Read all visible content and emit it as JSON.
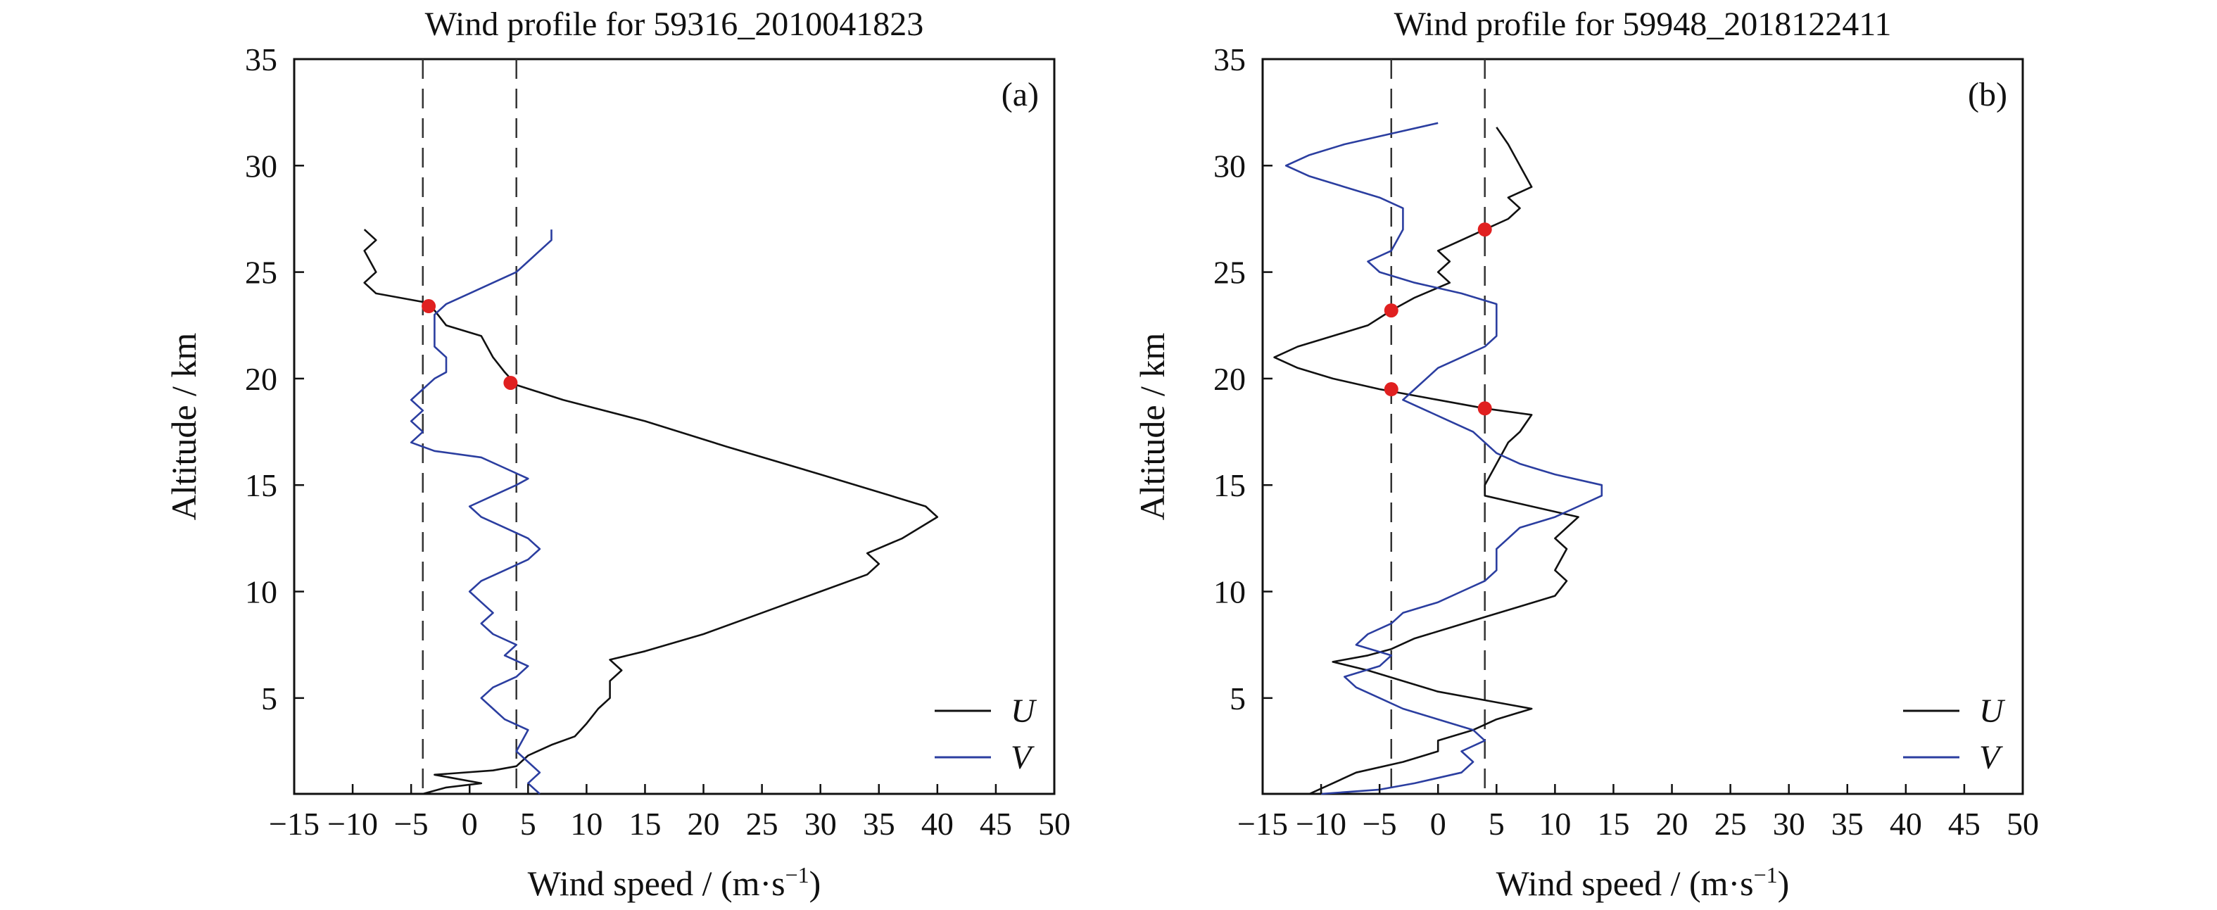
{
  "chart_data": [
    {
      "type": "line",
      "panel": "(a)",
      "title": "Wind profile for 59316_2010041823",
      "xlabel_main": "Wind speed / (m·s",
      "xlabel_sup": "−1",
      "xlabel_close": ")",
      "ylabel": "Altitude / km",
      "xlim": [
        -15,
        50
      ],
      "ylim": [
        0.5,
        35
      ],
      "xticks": [
        -15,
        -10,
        -5,
        0,
        5,
        10,
        15,
        20,
        25,
        30,
        35,
        40,
        45,
        50
      ],
      "xtick_labels": [
        "−15",
        "−10",
        "−5",
        "0",
        "5",
        "10",
        "15",
        "20",
        "25",
        "30",
        "35",
        "40",
        "45",
        "50"
      ],
      "yticks": [
        5,
        10,
        15,
        20,
        25,
        30,
        35
      ],
      "ytick_labels": [
        "5",
        "10",
        "15",
        "20",
        "25",
        "30",
        "35"
      ],
      "reference_lines_x": [
        -4,
        4
      ],
      "legend_position": "bottom-right",
      "series": [
        {
          "name": "U",
          "color": "#111111",
          "points": [
            [
              -4,
              0.5
            ],
            [
              -2,
              0.8
            ],
            [
              1,
              1.0
            ],
            [
              -3,
              1.4
            ],
            [
              2,
              1.6
            ],
            [
              4,
              1.8
            ],
            [
              5,
              2.3
            ],
            [
              7,
              2.8
            ],
            [
              9,
              3.2
            ],
            [
              10,
              3.8
            ],
            [
              11,
              4.5
            ],
            [
              12,
              5.0
            ],
            [
              12,
              5.8
            ],
            [
              13,
              6.3
            ],
            [
              12,
              6.8
            ],
            [
              15,
              7.2
            ],
            [
              20,
              8.0
            ],
            [
              25,
              9.0
            ],
            [
              30,
              10.0
            ],
            [
              34,
              10.8
            ],
            [
              35,
              11.3
            ],
            [
              34,
              11.8
            ],
            [
              37,
              12.5
            ],
            [
              40,
              13.5
            ],
            [
              39,
              14.0
            ],
            [
              36,
              14.5
            ],
            [
              30,
              15.5
            ],
            [
              22,
              16.8
            ],
            [
              15,
              18.0
            ],
            [
              8,
              19.0
            ],
            [
              4,
              19.7
            ],
            [
              3,
              20.3
            ],
            [
              2,
              21.0
            ],
            [
              1,
              22.0
            ],
            [
              -2,
              22.5
            ],
            [
              -3,
              23.2
            ],
            [
              -4,
              23.6
            ],
            [
              -8,
              24.0
            ],
            [
              -9,
              24.5
            ],
            [
              -8,
              25.0
            ],
            [
              -9,
              26.0
            ],
            [
              -8,
              26.5
            ],
            [
              -9,
              27.0
            ]
          ]
        },
        {
          "name": "V",
          "color": "#2b3ea0",
          "points": [
            [
              6,
              0.5
            ],
            [
              5,
              1.0
            ],
            [
              6,
              1.5
            ],
            [
              4,
              2.5
            ],
            [
              5,
              3.5
            ],
            [
              3,
              4.0
            ],
            [
              2,
              4.5
            ],
            [
              1,
              5.0
            ],
            [
              2,
              5.5
            ],
            [
              4,
              6.0
            ],
            [
              5,
              6.5
            ],
            [
              3,
              7.0
            ],
            [
              4,
              7.5
            ],
            [
              2,
              8.0
            ],
            [
              1,
              8.5
            ],
            [
              2,
              9.0
            ],
            [
              1,
              9.5
            ],
            [
              0,
              10.0
            ],
            [
              1,
              10.5
            ],
            [
              3,
              11.0
            ],
            [
              5,
              11.5
            ],
            [
              6,
              12.0
            ],
            [
              5,
              12.5
            ],
            [
              3,
              13.0
            ],
            [
              1,
              13.5
            ],
            [
              0,
              14.0
            ],
            [
              2,
              14.5
            ],
            [
              4,
              15.0
            ],
            [
              5,
              15.3
            ],
            [
              3,
              15.8
            ],
            [
              1,
              16.3
            ],
            [
              -3,
              16.6
            ],
            [
              -5,
              17.0
            ],
            [
              -4,
              17.5
            ],
            [
              -5,
              18.0
            ],
            [
              -4,
              18.5
            ],
            [
              -5,
              19.0
            ],
            [
              -4,
              19.5
            ],
            [
              -3,
              20.0
            ],
            [
              -2,
              20.3
            ],
            [
              -2,
              21.0
            ],
            [
              -3,
              21.5
            ],
            [
              -3,
              22.0
            ],
            [
              -3,
              22.5
            ],
            [
              -3,
              23.0
            ],
            [
              -2,
              23.5
            ],
            [
              0,
              24.0
            ],
            [
              2,
              24.5
            ],
            [
              4,
              25.0
            ],
            [
              5,
              25.5
            ],
            [
              6,
              26.0
            ],
            [
              7,
              26.5
            ],
            [
              7,
              27.0
            ]
          ]
        }
      ],
      "markers": [
        [
          -3.5,
          23.4
        ],
        [
          3.5,
          19.8
        ]
      ],
      "marker_color": "#e02020"
    },
    {
      "type": "line",
      "panel": "(b)",
      "title": "Wind profile for 59948_2018122411",
      "xlabel_main": "Wind speed / (m·s",
      "xlabel_sup": "−1",
      "xlabel_close": ")",
      "ylabel": "Altitude / km",
      "xlim": [
        -15,
        50
      ],
      "ylim": [
        0.5,
        35
      ],
      "xticks": [
        -15,
        -10,
        -5,
        0,
        5,
        10,
        15,
        20,
        25,
        30,
        35,
        40,
        45,
        50
      ],
      "xtick_labels": [
        "−15",
        "−10",
        "−5",
        "0",
        "5",
        "10",
        "15",
        "20",
        "25",
        "30",
        "35",
        "40",
        "45",
        "50"
      ],
      "yticks": [
        5,
        10,
        15,
        20,
        25,
        30,
        35
      ],
      "ytick_labels": [
        "5",
        "10",
        "15",
        "20",
        "25",
        "30",
        "35"
      ],
      "reference_lines_x": [
        -4,
        4
      ],
      "legend_position": "bottom-right",
      "series": [
        {
          "name": "U",
          "color": "#111111",
          "points": [
            [
              -11,
              0.5
            ],
            [
              -9,
              1.0
            ],
            [
              -7,
              1.5
            ],
            [
              -3,
              2.0
            ],
            [
              0,
              2.5
            ],
            [
              0,
              3.0
            ],
            [
              3,
              3.5
            ],
            [
              5,
              4.0
            ],
            [
              8,
              4.5
            ],
            [
              4,
              4.9
            ],
            [
              0,
              5.3
            ],
            [
              -3,
              5.8
            ],
            [
              -6,
              6.3
            ],
            [
              -9,
              6.7
            ],
            [
              -6,
              7.0
            ],
            [
              -4,
              7.3
            ],
            [
              -2,
              7.8
            ],
            [
              1,
              8.3
            ],
            [
              4,
              8.8
            ],
            [
              7,
              9.3
            ],
            [
              10,
              9.8
            ],
            [
              11,
              10.5
            ],
            [
              10,
              11.0
            ],
            [
              11,
              12.0
            ],
            [
              10,
              12.5
            ],
            [
              11,
              13.0
            ],
            [
              12,
              13.5
            ],
            [
              8,
              14.0
            ],
            [
              4,
              14.5
            ],
            [
              4,
              15.0
            ],
            [
              5,
              16.0
            ],
            [
              6,
              17.0
            ],
            [
              7,
              17.5
            ],
            [
              8,
              18.3
            ],
            [
              4,
              18.6
            ],
            [
              0,
              19.0
            ],
            [
              -5,
              19.5
            ],
            [
              -9,
              20.0
            ],
            [
              -12,
              20.5
            ],
            [
              -14,
              21.0
            ],
            [
              -12,
              21.5
            ],
            [
              -9,
              22.0
            ],
            [
              -6,
              22.5
            ],
            [
              -4,
              23.2
            ],
            [
              -2,
              23.8
            ],
            [
              1,
              24.5
            ],
            [
              0,
              25.0
            ],
            [
              1,
              25.5
            ],
            [
              0,
              26.0
            ],
            [
              2,
              26.5
            ],
            [
              4,
              27.0
            ],
            [
              6,
              27.5
            ],
            [
              7,
              28.0
            ],
            [
              6,
              28.5
            ],
            [
              8,
              29.0
            ],
            [
              7,
              30.0
            ],
            [
              6,
              31.0
            ],
            [
              5,
              31.8
            ]
          ]
        },
        {
          "name": "V",
          "color": "#2b3ea0",
          "points": [
            [
              -10,
              0.5
            ],
            [
              -5,
              0.7
            ],
            [
              -2,
              1.0
            ],
            [
              2,
              1.5
            ],
            [
              3,
              2.0
            ],
            [
              2,
              2.5
            ],
            [
              4,
              3.0
            ],
            [
              3,
              3.5
            ],
            [
              0,
              4.0
            ],
            [
              -3,
              4.5
            ],
            [
              -5,
              5.0
            ],
            [
              -7,
              5.5
            ],
            [
              -8,
              6.0
            ],
            [
              -5,
              6.5
            ],
            [
              -4,
              7.0
            ],
            [
              -7,
              7.5
            ],
            [
              -6,
              8.0
            ],
            [
              -4,
              8.5
            ],
            [
              -3,
              9.0
            ],
            [
              0,
              9.5
            ],
            [
              2,
              10.0
            ],
            [
              4,
              10.5
            ],
            [
              5,
              11.0
            ],
            [
              5,
              12.0
            ],
            [
              6,
              12.5
            ],
            [
              7,
              13.0
            ],
            [
              10,
              13.5
            ],
            [
              12,
              14.0
            ],
            [
              14,
              14.5
            ],
            [
              14,
              15.0
            ],
            [
              10,
              15.5
            ],
            [
              7,
              16.0
            ],
            [
              5,
              16.5
            ],
            [
              4,
              17.0
            ],
            [
              3,
              17.5
            ],
            [
              1,
              18.0
            ],
            [
              -1,
              18.5
            ],
            [
              -3,
              19.0
            ],
            [
              -2,
              19.5
            ],
            [
              -1,
              20.0
            ],
            [
              0,
              20.5
            ],
            [
              2,
              21.0
            ],
            [
              4,
              21.5
            ],
            [
              5,
              22.0
            ],
            [
              5,
              22.5
            ],
            [
              5,
              23.0
            ],
            [
              5,
              23.5
            ],
            [
              2,
              24.0
            ],
            [
              -2,
              24.5
            ],
            [
              -5,
              25.0
            ],
            [
              -6,
              25.5
            ],
            [
              -4,
              26.0
            ],
            [
              -3,
              27.0
            ],
            [
              -3,
              28.0
            ],
            [
              -5,
              28.5
            ],
            [
              -8,
              29.0
            ],
            [
              -11,
              29.5
            ],
            [
              -13,
              30.0
            ],
            [
              -11,
              30.5
            ],
            [
              -8,
              31.0
            ],
            [
              -4,
              31.5
            ],
            [
              0,
              32.0
            ]
          ]
        }
      ],
      "markers": [
        [
          4,
          27.0
        ],
        [
          -4,
          23.2
        ],
        [
          -4,
          19.5
        ],
        [
          4,
          18.6
        ]
      ],
      "marker_color": "#e02020"
    }
  ]
}
